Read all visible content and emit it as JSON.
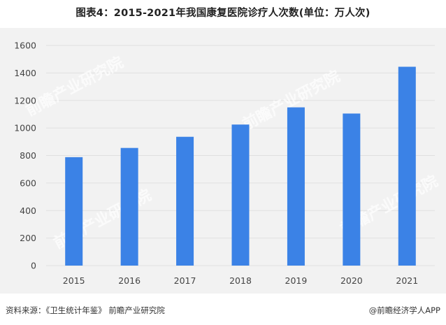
{
  "chart_data": {
    "type": "bar",
    "title": "图表4：2015-2021年我国康复医院诊疗人次数(单位：万人次)",
    "categories": [
      "2015",
      "2016",
      "2017",
      "2018",
      "2019",
      "2020",
      "2021"
    ],
    "values": [
      788,
      855,
      936,
      1025,
      1150,
      1105,
      1445
    ],
    "ylim": [
      0,
      1600
    ],
    "yticks": [
      0,
      200,
      400,
      600,
      800,
      1000,
      1200,
      1400,
      1600
    ],
    "grid": true,
    "bar_color": "#3b82e6",
    "background_color": "#f2f2f2",
    "grid_color": "#e0e0e0"
  },
  "footer": {
    "source": "资料来源：《卫生统计年鉴》 前瞻产业研究院",
    "credit": "@前瞻经济学人APP"
  },
  "watermark": {
    "text": "前瞻产业研究院"
  }
}
